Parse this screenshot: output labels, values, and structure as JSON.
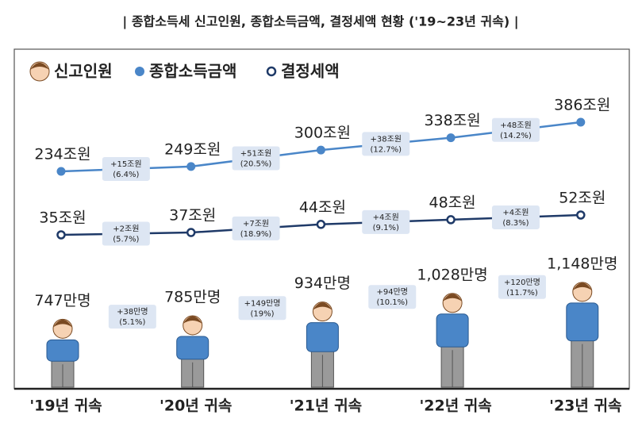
{
  "chart_data": {
    "type": "line",
    "title": "| 종합소득세 신고인원, 종합소득금액, 결정세액 현황 ('19~23년 귀속) |",
    "categories": [
      "'19년 귀속",
      "'20년 귀속",
      "'21년 귀속",
      "'22년 귀속",
      "'23년 귀속"
    ],
    "people": {
      "name": "신고인원",
      "color": "#4a86c8",
      "values": [
        747,
        785,
        934,
        1028,
        1148
      ],
      "value_labels": [
        "747만명",
        "785만명",
        "934만명",
        "1,028만명",
        "1,148만명"
      ],
      "changes": [
        {
          "amount": "+38만명",
          "rate": "(5.1%)"
        },
        {
          "amount": "+149만명",
          "rate": "(19%)"
        },
        {
          "amount": "+94만명",
          "rate": "(10.1%)"
        },
        {
          "amount": "+120만명",
          "rate": "(11.7%)"
        }
      ]
    },
    "series": [
      {
        "name": "종합소득금액",
        "color": "#4a86c8",
        "values": [
          234,
          249,
          300,
          338,
          386
        ],
        "value_labels": [
          "234조원",
          "249조원",
          "300조원",
          "338조원",
          "386조원"
        ],
        "changes": [
          {
            "amount": "+15조원",
            "rate": "(6.4%)"
          },
          {
            "amount": "+51조원",
            "rate": "(20.5%)"
          },
          {
            "amount": "+38조원",
            "rate": "(12.7%)"
          },
          {
            "amount": "+48조원",
            "rate": "(14.2%)"
          }
        ]
      },
      {
        "name": "결정세액",
        "color": "#1f3a68",
        "values": [
          35,
          37,
          44,
          48,
          52
        ],
        "value_labels": [
          "35조원",
          "37조원",
          "44조원",
          "48조원",
          "52조원"
        ],
        "changes": [
          {
            "amount": "+2조원",
            "rate": "(5.7%)"
          },
          {
            "amount": "+7조원",
            "rate": "(18.9%)"
          },
          {
            "amount": "+4조원",
            "rate": "(9.1%)"
          },
          {
            "amount": "+4조원",
            "rate": "(8.3%)"
          }
        ]
      }
    ]
  }
}
